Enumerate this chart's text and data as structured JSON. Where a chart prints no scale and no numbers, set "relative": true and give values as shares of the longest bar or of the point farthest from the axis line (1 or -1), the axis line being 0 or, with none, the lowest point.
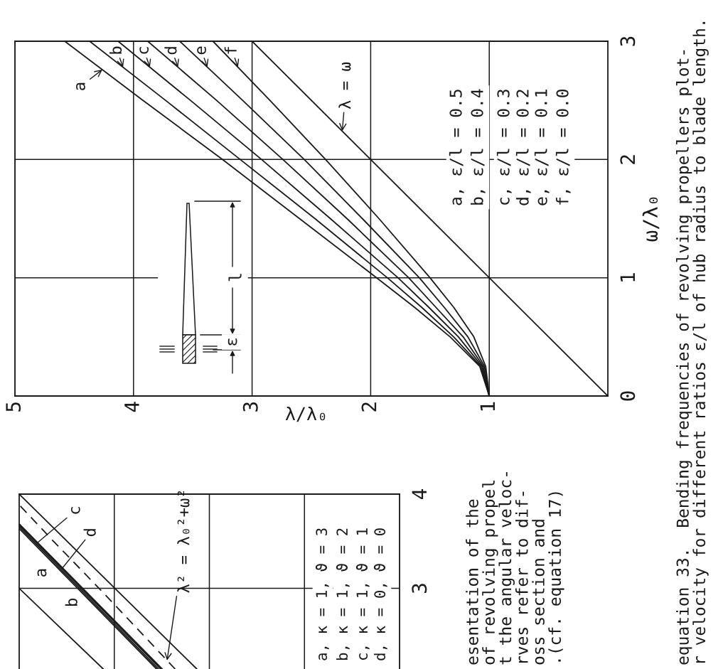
{
  "chart_data": [
    {
      "type": "line",
      "xlabel": "λ/λ₀",
      "ylabel": "ω/λ₀",
      "xlim": [
        5,
        0
      ],
      "xticks": [
        5,
        4,
        3,
        2,
        1
      ],
      "ylim": [
        0,
        3
      ],
      "yticks": [
        0,
        1,
        2,
        3
      ],
      "grid": true,
      "series": [
        {
          "name": "a",
          "color": "#1a1a1a",
          "x": [
            1,
            1.08,
            1.33,
            1.63,
            1.95,
            2.6,
            3.25,
            3.92,
            4.58
          ],
          "values": [
            0,
            0.25,
            0.5,
            0.75,
            1,
            1.5,
            2,
            2.5,
            3
          ]
        },
        {
          "name": "b",
          "color": "#1a1a1a",
          "x": [
            1,
            1.07,
            1.3,
            1.57,
            1.86,
            2.47,
            3.1,
            3.73,
            4.37
          ],
          "values": [
            0,
            0.25,
            0.5,
            0.75,
            1,
            1.5,
            2,
            2.5,
            3
          ]
        },
        {
          "name": "c",
          "color": "#1a1a1a",
          "x": [
            1,
            1.06,
            1.26,
            1.51,
            1.77,
            2.34,
            2.92,
            3.52,
            4.13
          ],
          "values": [
            0,
            0.25,
            0.5,
            0.75,
            1,
            1.5,
            2,
            2.5,
            3
          ]
        },
        {
          "name": "d",
          "color": "#1a1a1a",
          "x": [
            1,
            1.05,
            1.22,
            1.45,
            1.68,
            2.2,
            2.74,
            3.3,
            3.88
          ],
          "values": [
            0,
            0.25,
            0.5,
            0.75,
            1,
            1.5,
            2,
            2.5,
            3
          ]
        },
        {
          "name": "e",
          "color": "#1a1a1a",
          "x": [
            1,
            1.04,
            1.18,
            1.38,
            1.59,
            2.07,
            2.56,
            3.08,
            3.61
          ],
          "values": [
            0,
            0.25,
            0.5,
            0.75,
            1,
            1.5,
            2,
            2.5,
            3
          ]
        },
        {
          "name": "f",
          "color": "#1a1a1a",
          "x": [
            1,
            1.03,
            1.13,
            1.3,
            1.5,
            1.93,
            2.38,
            2.85,
            3.33
          ],
          "values": [
            0,
            0.25,
            0.5,
            0.75,
            1,
            1.5,
            2,
            2.5,
            3
          ]
        },
        {
          "name": "λ = ω",
          "color": "#1a1a1a",
          "x": [
            0,
            3
          ],
          "values": [
            0,
            3
          ]
        }
      ],
      "annotations": [
        "a, ε/l = 0.5",
        "b, ε/l = 0.4",
        "c, ε/l = 0.3",
        "d, ε/l = 0.2",
        "e, ε/l = 0.1",
        "f, ε/l = 0.0",
        "l",
        "ε",
        "equation 33.  Bending frequencies of revolving propellers plot-\nr velocity for different ratios ε/l of hub radius to blade length."
      ]
    },
    {
      "type": "line",
      "orientation": "horizontal",
      "relative": true,
      "ylim": [
        2.144,
        4
      ],
      "yticks": [
        3,
        4
      ],
      "grid": true,
      "series": [
        {
          "name": "a",
          "color": "#1a1a1a",
          "x": [
            2.144,
            3.634
          ],
          "values": [
            -0.639,
            -1.0
          ]
        },
        {
          "name": "b",
          "color": "#1a1a1a",
          "x": [
            2.144,
            3.654
          ],
          "values": [
            -0.634,
            -1.0
          ]
        },
        {
          "name": "c",
          "color": "#1a1a1a",
          "x": [
            2.144,
            3.672
          ],
          "values": [
            -0.628,
            -1.0
          ]
        },
        {
          "name": "d",
          "color": "#1a1a1a",
          "x": [
            2.144,
            3.684
          ],
          "values": [
            -0.624,
            -1.0
          ]
        },
        {
          "name": "λ² = λ₀²+ω²",
          "color": "#1a1a1a",
          "line_style": "dashed",
          "x": [
            2.144,
            2.5,
            3,
            3.5,
            3.886
          ],
          "values": [
            -0.59,
            -0.673,
            -0.79,
            -0.91,
            -1.0
          ]
        },
        {
          "color": "#1a1a1a",
          "x": [
            2.144,
            4
          ],
          "values": [
            -0.533,
            -1.0
          ]
        },
        {
          "color": "#1a1a1a",
          "x": [
            2.144,
            3.0
          ],
          "values": [
            -0.779,
            -1.0
          ]
        }
      ],
      "annotations": [
        "a, κ = 1, ϑ = 3",
        "b, κ = 1, ϑ = 2",
        "c, κ = 1, ϑ = 1",
        "d, κ = 0, ϑ = 0",
        "esentation of the\nof revolving propel\nt the angular veloc-\nrves refer to dif-\noss section and\n.(cf. equation 17)"
      ]
    }
  ]
}
